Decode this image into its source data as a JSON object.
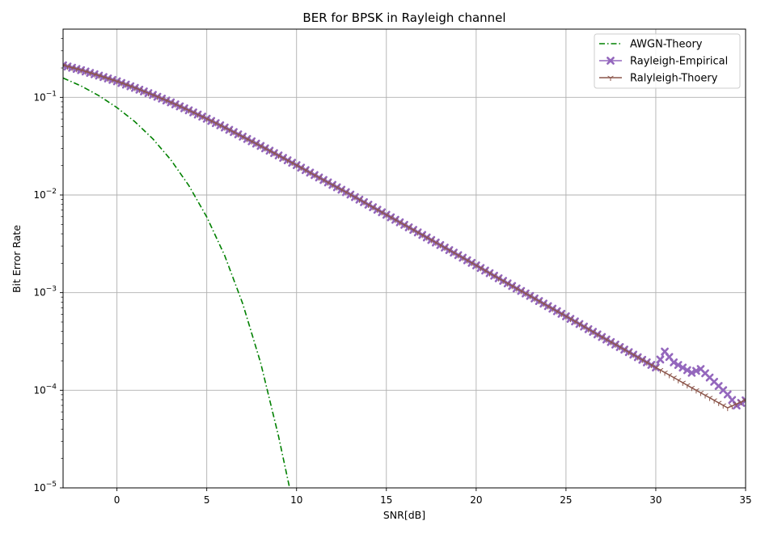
{
  "chart_data": {
    "type": "line",
    "title": "BER for BPSK in Rayleigh channel",
    "xlabel": "SNR[dB]",
    "ylabel": "Bit Error Rate",
    "xlim": [
      -3,
      35
    ],
    "ylim": [
      1e-05,
      0.5
    ],
    "y_scale": "log",
    "grid": true,
    "legend_position": "top-right",
    "x_ticks": [
      0,
      5,
      10,
      15,
      20,
      25,
      30,
      35
    ],
    "y_ticks": [
      {
        "value": 0.1,
        "mantissa": "10",
        "exponent": "−1"
      },
      {
        "value": 0.01,
        "mantissa": "10",
        "exponent": "−2"
      },
      {
        "value": 0.001,
        "mantissa": "10",
        "exponent": "−3"
      },
      {
        "value": 0.0001,
        "mantissa": "10",
        "exponent": "−4"
      },
      {
        "value": 1e-05,
        "mantissa": "10",
        "exponent": "−5"
      }
    ],
    "series": [
      {
        "name": "AWGN-Theory",
        "color": "#008000",
        "line_style": "dash-dot",
        "marker": "none",
        "x": [
          -3,
          -2,
          -1,
          0,
          1,
          2,
          3,
          4,
          5,
          6,
          7,
          8,
          9,
          9.6
        ],
        "y": [
          0.158,
          0.131,
          0.104,
          0.0786,
          0.0563,
          0.0375,
          0.0229,
          0.0125,
          0.00595,
          0.00239,
          0.000773,
          0.000191,
          3.36e-05,
          1.02e-05
        ]
      },
      {
        "name": "Rayleigh-Empirical",
        "color": "#9467bd",
        "line_style": "solid",
        "marker": "x",
        "x": [
          -3,
          -2,
          -1,
          0,
          1,
          2,
          3,
          4,
          5,
          6,
          7,
          8,
          9,
          10,
          11,
          12,
          13,
          14,
          15,
          16,
          17,
          18,
          19,
          20,
          21,
          22,
          23,
          24,
          25,
          26,
          27,
          28,
          29,
          30,
          30.5,
          31,
          32,
          32.5,
          33,
          34,
          34.5,
          35
        ],
        "y": [
          0.213,
          0.19,
          0.167,
          0.146,
          0.125,
          0.106,
          0.0889,
          0.0737,
          0.0604,
          0.0491,
          0.0396,
          0.0318,
          0.0254,
          0.0202,
          0.016,
          0.0127,
          0.0101,
          0.00796,
          0.00627,
          0.00495,
          0.0039,
          0.00307,
          0.00242,
          0.0019,
          0.00149,
          0.00117,
          0.000925,
          0.000727,
          0.000572,
          0.000449,
          0.000351,
          0.000277,
          0.000218,
          0.000171,
          0.000249,
          0.000193,
          0.000151,
          0.000165,
          0.000135,
          9.06e-05,
          6.98e-05,
          7.88e-05
        ]
      },
      {
        "name": "Ralyleigh-Thoery",
        "color": "#8c564b",
        "line_style": "solid",
        "marker": "tri_down",
        "x": [
          -3,
          -2,
          -1,
          0,
          1,
          2,
          3,
          4,
          5,
          6,
          7,
          8,
          9,
          10,
          11,
          12,
          13,
          14,
          15,
          16,
          17,
          18,
          19,
          20,
          21,
          22,
          23,
          24,
          25,
          26,
          27,
          28,
          29,
          30,
          31,
          32,
          33,
          34,
          35
        ],
        "y": [
          0.213,
          0.19,
          0.167,
          0.146,
          0.125,
          0.106,
          0.0889,
          0.0737,
          0.0604,
          0.0491,
          0.0396,
          0.0318,
          0.0254,
          0.0202,
          0.016,
          0.0127,
          0.0101,
          0.00796,
          0.00627,
          0.00495,
          0.0039,
          0.00307,
          0.00242,
          0.0019,
          0.00149,
          0.00117,
          0.000925,
          0.000727,
          0.000572,
          0.000449,
          0.000351,
          0.000277,
          0.000218,
          0.000171,
          0.000135,
          0.000106,
          8.38e-05,
          6.6e-05,
          7.92e-05
        ]
      }
    ]
  }
}
